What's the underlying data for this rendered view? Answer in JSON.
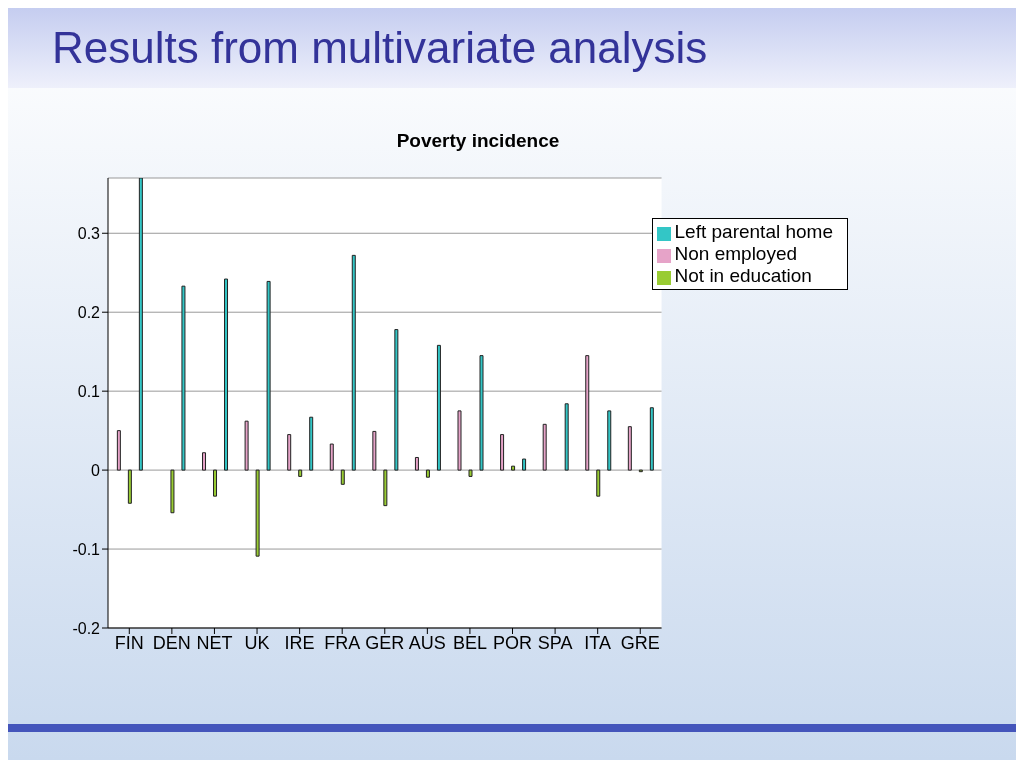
{
  "chart_data": {
    "type": "bar",
    "title": "Results from multivariate analysis",
    "subtitle": "Poverty incidence",
    "categories": [
      "FIN",
      "DEN",
      "NET",
      "UK",
      "IRE",
      "FRA",
      "GER",
      "AUS",
      "BEL",
      "POR",
      "SPA",
      "ITA",
      "GRE"
    ],
    "series": [
      {
        "name": "Non employed",
        "color": "#e6a3c8",
        "values": [
          0.05,
          0,
          0.022,
          0.062,
          0.045,
          0.033,
          0.049,
          0.016,
          0.075,
          0.045,
          0.058,
          0.145,
          0.055
        ]
      },
      {
        "name": "Not in education",
        "color": "#99cc33",
        "values": [
          -0.042,
          -0.054,
          -0.033,
          -0.109,
          -0.008,
          -0.018,
          -0.045,
          -0.009,
          -0.008,
          0.005,
          0,
          -0.033,
          -0.002
        ]
      },
      {
        "name": "Left parental home",
        "color": "#33c6c6",
        "values": [
          0.37,
          0.233,
          0.242,
          0.239,
          0.067,
          0.272,
          0.178,
          0.158,
          0.145,
          0.014,
          0.084,
          0.075,
          0.079
        ]
      }
    ],
    "ylim": [
      -0.2,
      0.37
    ],
    "yticks": [
      -0.2,
      -0.1,
      0,
      0.1,
      0.2,
      0.3
    ],
    "grid": "y",
    "legend": "top right"
  }
}
